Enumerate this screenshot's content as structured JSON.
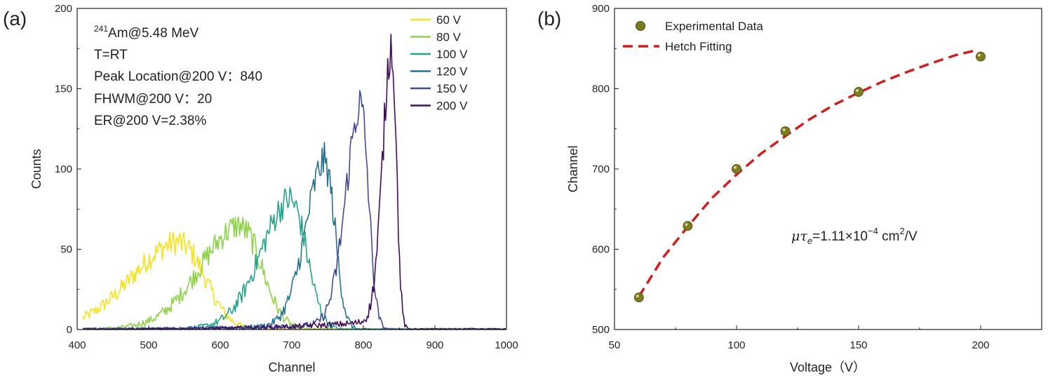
{
  "chart_data": [
    {
      "panel": "(a)",
      "type": "line",
      "xlabel": "Channel",
      "ylabel": "Counts",
      "xlim": [
        400,
        1000
      ],
      "ylim": [
        0,
        200
      ],
      "xticks": [
        400,
        500,
        600,
        700,
        800,
        900,
        1000
      ],
      "yticks": [
        0,
        50,
        100,
        150,
        200
      ],
      "annotations": {
        "source_sup": "241",
        "source": "Am@5.48 MeV",
        "temp": "T=RT",
        "peak": "Peak Location@200 V：840",
        "fwhm": "FHWM@200 V：20",
        "er": "ER@200 V=2.38%"
      },
      "legend_position": "top-right",
      "series": [
        {
          "name": "60 V",
          "color": "#f5e21f",
          "peak_channel": 545,
          "peak_counts": 53,
          "width_channels": 45
        },
        {
          "name": "80 V",
          "color": "#8fd249",
          "peak_channel": 630,
          "peak_counts": 63,
          "width_channels": 38
        },
        {
          "name": "100 V",
          "color": "#25a38a",
          "peak_channel": 700,
          "peak_counts": 79,
          "width_channels": 28
        },
        {
          "name": "120 V",
          "color": "#27728f",
          "peak_channel": 747,
          "peak_counts": 102,
          "width_channels": 18
        },
        {
          "name": "150 V",
          "color": "#414b94",
          "peak_channel": 797,
          "peak_counts": 136,
          "width_channels": 14
        },
        {
          "name": "200 V",
          "color": "#430b5a",
          "peak_channel": 840,
          "peak_counts": 173,
          "width_channels": 8.5
        }
      ]
    },
    {
      "panel": "(b)",
      "type": "scatter",
      "xlabel": "Voltage（V）",
      "ylabel": "Channel",
      "xlim": [
        50,
        225
      ],
      "ylim": [
        500,
        900
      ],
      "xticks": [
        50,
        100,
        150,
        200
      ],
      "yticks": [
        500,
        600,
        700,
        800,
        900
      ],
      "legend_position": "top-left",
      "series": [
        {
          "name": "Experimental Data",
          "marker_color": "#7d7a1f",
          "x": [
            60,
            80,
            100,
            120,
            150,
            200
          ],
          "y": [
            540,
            629,
            700,
            747,
            796,
            840
          ]
        },
        {
          "name": "Hetch Fitting",
          "line_color": "#cc1f1f",
          "dash": true,
          "x": [
            60,
            70,
            80,
            90,
            100,
            110,
            120,
            130,
            140,
            150,
            160,
            170,
            180,
            190,
            197
          ],
          "y": [
            541,
            590,
            628,
            664,
            693,
            719,
            741,
            762,
            780,
            795,
            809,
            821,
            832,
            842,
            847
          ]
        }
      ],
      "annotation": {
        "mu": "μτ",
        "sub": "e",
        "eq": "=1.11×10",
        "exp": "−4",
        "unit": " cm",
        "unit_exp": "2",
        "unit_tail": "/V"
      }
    }
  ]
}
